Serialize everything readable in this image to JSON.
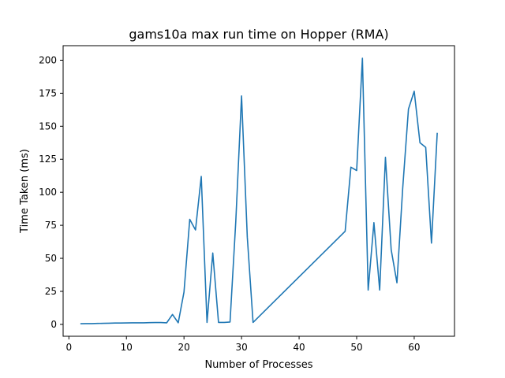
{
  "chart_data": {
    "type": "line",
    "title": "gams10a max run time on Hopper (RMA)",
    "xlabel": "Number of Processes",
    "ylabel": "Time Taken (ms)",
    "xlim": [
      -1,
      67
    ],
    "ylim": [
      -9,
      211
    ],
    "xticks": [
      0,
      10,
      20,
      30,
      40,
      50,
      60
    ],
    "yticks": [
      0,
      25,
      50,
      75,
      100,
      125,
      150,
      175,
      200
    ],
    "grid": false,
    "series": [
      {
        "color": "#1f77b4",
        "x": [
          2,
          3,
          4,
          5,
          6,
          7,
          8,
          9,
          10,
          11,
          12,
          13,
          14,
          15,
          16,
          17,
          18,
          19,
          20,
          21,
          22,
          23,
          24,
          25,
          26,
          27,
          28,
          29,
          30,
          31,
          32,
          48,
          49,
          50,
          51,
          52,
          53,
          54,
          55,
          56,
          57,
          58,
          59,
          60,
          61,
          62,
          63,
          64
        ],
        "y": [
          0.5,
          0.6,
          0.6,
          0.7,
          0.8,
          0.9,
          1.0,
          1.0,
          1.1,
          1.2,
          1.2,
          1.2,
          1.3,
          1.4,
          1.4,
          1.2,
          7.5,
          1.2,
          24.5,
          79.5,
          71.5,
          112.0,
          1.5,
          54.0,
          1.5,
          1.5,
          1.8,
          78.0,
          173.0,
          66.0,
          1.5,
          70.5,
          119.0,
          116.5,
          201.5,
          26.0,
          77.0,
          26.0,
          126.5,
          56.5,
          31.5,
          103.0,
          163.0,
          176.5,
          137.5,
          134.0,
          61.5,
          145.0
        ]
      }
    ]
  }
}
